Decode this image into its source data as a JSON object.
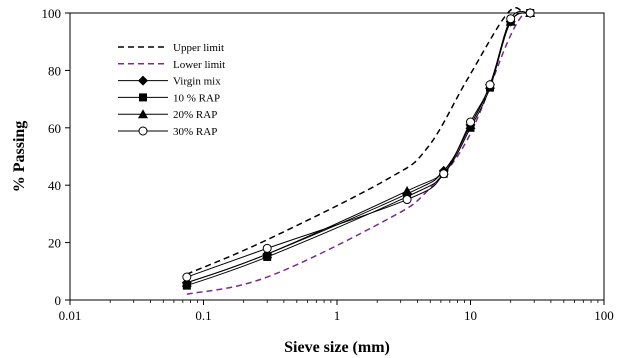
{
  "chart_data": {
    "type": "line",
    "xlabel": "Sieve size (mm)",
    "ylabel": "% Passing",
    "xscale": "log",
    "xlim": [
      0.01,
      100
    ],
    "ylim": [
      0,
      100
    ],
    "xticks": [
      "0.01",
      "0.1",
      "1",
      "10",
      "100"
    ],
    "yticks": [
      "0",
      "20",
      "40",
      "60",
      "80",
      "100"
    ],
    "grid": false,
    "legend_position": "top-left",
    "series": [
      {
        "name": "Upper limit",
        "style": "dashed",
        "color": "#000000",
        "marker": "none",
        "x": [
          0.075,
          0.3,
          2.36,
          4.75,
          9.5,
          19,
          25
        ],
        "y": [
          9,
          21,
          42,
          53,
          77,
          100,
          100
        ]
      },
      {
        "name": "Lower limit",
        "style": "dashed",
        "color": "#7B2C8F",
        "marker": "none",
        "x": [
          0.075,
          0.3,
          2.36,
          4.75,
          9.5,
          19,
          25
        ],
        "y": [
          2,
          8,
          28,
          38,
          56,
          90,
          100
        ]
      },
      {
        "name": "Virgin mix",
        "style": "solid",
        "color": "#000000",
        "marker": "diamond",
        "x": [
          0.075,
          0.3,
          3.35,
          6.3,
          10,
          14,
          20,
          28
        ],
        "y": [
          6,
          16,
          37,
          45,
          61,
          75,
          97,
          100
        ]
      },
      {
        "name": "10 % RAP",
        "style": "solid",
        "color": "#000000",
        "marker": "square",
        "x": [
          0.075,
          0.3,
          3.35,
          6.3,
          10,
          14,
          20,
          28
        ],
        "y": [
          5,
          15,
          36,
          44,
          60,
          74,
          97,
          100
        ]
      },
      {
        "name": "20% RAP",
        "style": "solid",
        "color": "#000000",
        "marker": "triangle",
        "x": [
          0.075,
          0.3,
          3.35,
          6.3,
          10,
          14,
          20,
          28
        ],
        "y": [
          6,
          16,
          38,
          45,
          61,
          75,
          97,
          100
        ]
      },
      {
        "name": "30% RAP",
        "style": "solid",
        "color": "#000000",
        "marker": "circle",
        "x": [
          0.075,
          0.3,
          3.35,
          6.3,
          10,
          14,
          20,
          28
        ],
        "y": [
          8,
          18,
          35,
          44,
          62,
          75,
          98,
          100
        ]
      }
    ]
  }
}
